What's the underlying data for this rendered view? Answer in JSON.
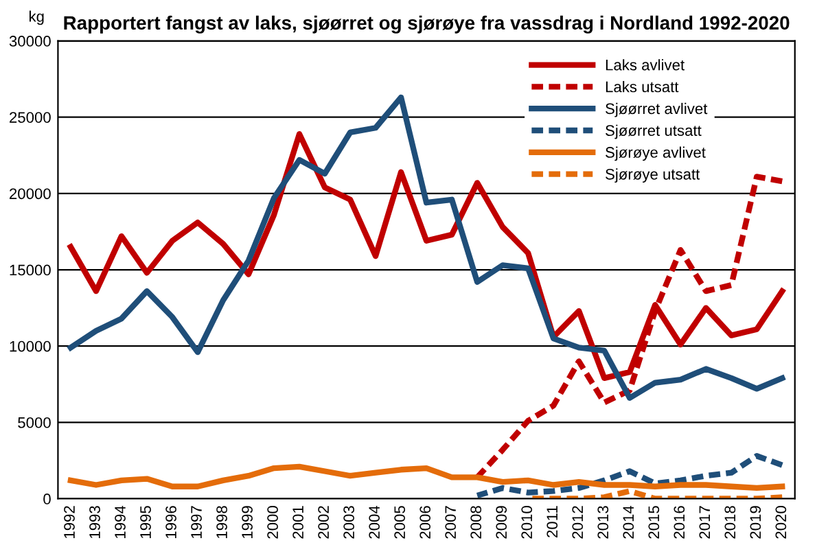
{
  "chart_data": {
    "type": "line",
    "title": "Rapportert fangst av laks, sjøørret og sjørøye fra vassdrag i Nordland 1992-2020",
    "ylabel": "kg",
    "categories": [
      "1992",
      "1993",
      "1994",
      "1995",
      "1996",
      "1997",
      "1998",
      "1999",
      "2000",
      "2001",
      "2002",
      "2003",
      "2004",
      "2005",
      "2006",
      "2007",
      "2008",
      "2009",
      "2010",
      "2011",
      "2012",
      "2013",
      "2014",
      "2015",
      "2016",
      "2017",
      "2018",
      "2019",
      "2020"
    ],
    "series": [
      {
        "name": "Laks avlivet",
        "color": "#c00000",
        "line_style": "solid",
        "values": [
          16500,
          13600,
          17200,
          14800,
          16900,
          18100,
          16700,
          14700,
          18600,
          23900,
          20400,
          19600,
          15900,
          21400,
          16900,
          17300,
          20700,
          17800,
          16100,
          10600,
          12300,
          7900,
          8300,
          12700,
          10100,
          12500,
          10700,
          11100,
          13600
        ]
      },
      {
        "name": "Laks utsatt",
        "color": "#c00000",
        "line_style": "dashed",
        "values": [
          null,
          null,
          null,
          null,
          null,
          null,
          null,
          null,
          null,
          null,
          null,
          null,
          null,
          null,
          null,
          null,
          1400,
          3200,
          5100,
          6100,
          9000,
          6300,
          7100,
          12300,
          16300,
          13600,
          14000,
          21100,
          20800
        ]
      },
      {
        "name": "Sjøørret avlivet",
        "color": "#1f4e79",
        "line_style": "solid",
        "values": [
          9900,
          11000,
          11800,
          13600,
          11900,
          9600,
          13000,
          15600,
          19700,
          22200,
          21300,
          24000,
          24300,
          26300,
          19400,
          19600,
          14200,
          15300,
          15100,
          10500,
          9900,
          9700,
          6600,
          7600,
          7800,
          8500,
          7900,
          7200,
          7900
        ]
      },
      {
        "name": "Sjøørret utsatt",
        "color": "#1f4e79",
        "line_style": "dashed",
        "values": [
          null,
          null,
          null,
          null,
          null,
          null,
          null,
          null,
          null,
          null,
          null,
          null,
          null,
          null,
          null,
          null,
          200,
          700,
          400,
          500,
          700,
          1200,
          1800,
          1000,
          1200,
          1500,
          1700,
          2800,
          2200
        ]
      },
      {
        "name": "Sjørøye avlivet",
        "color": "#e46c0a",
        "line_style": "solid",
        "values": [
          1200,
          900,
          1200,
          1300,
          800,
          800,
          1200,
          1500,
          2000,
          2100,
          1800,
          1500,
          1700,
          1900,
          2000,
          1400,
          1400,
          1100,
          1200,
          900,
          1100,
          900,
          900,
          800,
          900,
          900,
          800,
          700,
          800
        ]
      },
      {
        "name": "Sjørøye utsatt",
        "color": "#e46c0a",
        "line_style": "dashed",
        "values": [
          null,
          null,
          null,
          null,
          null,
          null,
          null,
          null,
          null,
          null,
          null,
          null,
          null,
          null,
          null,
          null,
          null,
          null,
          0,
          0,
          0,
          100,
          500,
          0,
          0,
          0,
          0,
          0,
          100
        ]
      }
    ],
    "ylim": [
      0,
      30000
    ],
    "yticks": [
      0,
      5000,
      10000,
      15000,
      20000,
      25000,
      30000
    ],
    "grid": "y",
    "legend": "top right",
    "marker": "none"
  }
}
